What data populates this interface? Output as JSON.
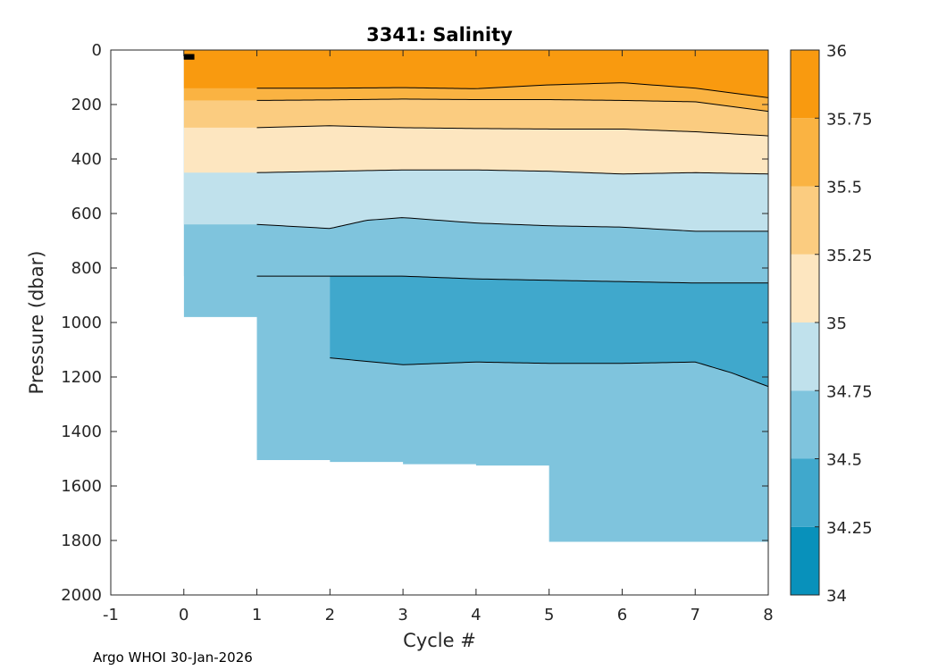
{
  "chart_data": {
    "type": "filled-contour",
    "title": "3341:  Salinity",
    "xlabel": "Cycle #",
    "ylabel": "Pressure (dbar)",
    "xlim": [
      -1,
      8
    ],
    "ylim": [
      0,
      2000
    ],
    "y_reversed": true,
    "xticks": [
      -1,
      0,
      1,
      2,
      3,
      4,
      5,
      6,
      7,
      8
    ],
    "yticks": [
      0,
      200,
      400,
      600,
      800,
      1000,
      1200,
      1400,
      1600,
      1800,
      2000
    ],
    "colorbar": {
      "range": [
        34,
        36
      ],
      "ticks": [
        "34",
        "34.25",
        "34.5",
        "34.75",
        "35",
        "35.25",
        "35.5",
        "35.75",
        "36"
      ],
      "levels": [
        {
          "from": 34.0,
          "to": 34.25,
          "color": "#0891bb"
        },
        {
          "from": 34.25,
          "to": 34.5,
          "color": "#40a8cc"
        },
        {
          "from": 34.5,
          "to": 34.75,
          "color": "#7fc4dd"
        },
        {
          "from": 34.75,
          "to": 35.0,
          "color": "#c0e1ec"
        },
        {
          "from": 35.0,
          "to": 35.25,
          "color": "#fde6c0"
        },
        {
          "from": 35.25,
          "to": 35.5,
          "color": "#fbcc80"
        },
        {
          "from": 35.5,
          "to": 35.75,
          "color": "#fab342"
        },
        {
          "from": 35.75,
          "to": 36.0,
          "color": "#f99a0f"
        }
      ]
    },
    "max_pressure_by_cycle": {
      "cycles": [
        0,
        1,
        2,
        3,
        4,
        5,
        6,
        7,
        8
      ],
      "pressure": [
        140,
        980,
        1505,
        1512,
        1520,
        1525,
        1805,
        1805,
        1805
      ]
    },
    "isohalines": [
      {
        "level": 35.75,
        "cycles": [
          1,
          2,
          3,
          4,
          5,
          6,
          7,
          8
        ],
        "pressure": [
          140,
          140,
          138,
          142,
          128,
          120,
          140,
          175
        ]
      },
      {
        "level": 35.5,
        "cycles": [
          1,
          2,
          3,
          4,
          5,
          6,
          7,
          8
        ],
        "pressure": [
          185,
          183,
          180,
          182,
          182,
          185,
          190,
          225
        ]
      },
      {
        "level": 35.25,
        "cycles": [
          1,
          2,
          3,
          4,
          5,
          6,
          7,
          8
        ],
        "pressure": [
          285,
          278,
          285,
          288,
          290,
          290,
          300,
          315
        ]
      },
      {
        "level": 35.0,
        "cycles": [
          1,
          2,
          3,
          4,
          5,
          6,
          7,
          8
        ],
        "pressure": [
          450,
          445,
          440,
          440,
          445,
          455,
          450,
          455
        ]
      },
      {
        "level": 34.75,
        "cycles": [
          1,
          2,
          2.5,
          3,
          4,
          5,
          6,
          7,
          8
        ],
        "pressure": [
          640,
          655,
          625,
          615,
          635,
          645,
          650,
          665,
          665
        ]
      },
      {
        "level": 34.5,
        "cycles": [
          1,
          2,
          3,
          4,
          5,
          6,
          7,
          8
        ],
        "pressure": [
          830,
          830,
          830,
          840,
          845,
          850,
          855,
          855
        ]
      },
      {
        "level": 34.25,
        "cycles": [
          2,
          3,
          4,
          5,
          6,
          7,
          7.5,
          8
        ],
        "pressure": [
          1130,
          1155,
          1145,
          1150,
          1150,
          1145,
          1185,
          1235
        ]
      }
    ]
  },
  "footer": "Argo WHOI 30-Jan-2026"
}
